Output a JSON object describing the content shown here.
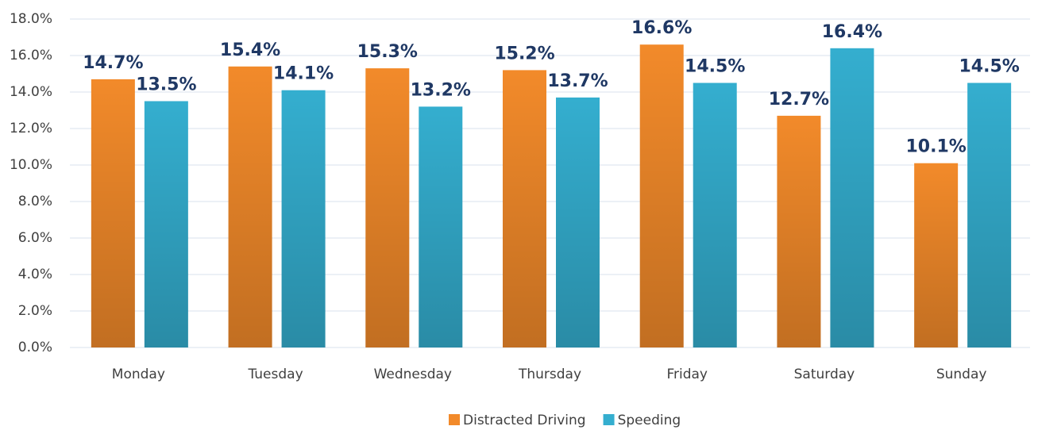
{
  "chart_data": {
    "type": "bar",
    "categories": [
      "Monday",
      "Tuesday",
      "Wednesday",
      "Thursday",
      "Friday",
      "Saturday",
      "Sunday"
    ],
    "series": [
      {
        "name": "Distracted Driving",
        "color": "#f28a2a",
        "values": [
          14.7,
          15.4,
          15.3,
          15.2,
          16.6,
          12.7,
          10.1
        ],
        "value_labels": [
          "14.7%",
          "15.4%",
          "15.3%",
          "15.2%",
          "16.6%",
          "12.7%",
          "10.1%"
        ]
      },
      {
        "name": "Speeding",
        "color": "#34aecf",
        "values": [
          13.5,
          14.1,
          13.2,
          13.7,
          14.5,
          16.4,
          14.5
        ],
        "value_labels": [
          "13.5%",
          "14.1%",
          "13.2%",
          "13.7%",
          "14.5%",
          "16.4%",
          "14.5%"
        ]
      }
    ],
    "ylim": [
      0,
      18
    ],
    "yticks": [
      {
        "value": 0,
        "label": "0.0%"
      },
      {
        "value": 2,
        "label": "2.0%"
      },
      {
        "value": 4,
        "label": "4.0%"
      },
      {
        "value": 6,
        "label": "6.0%"
      },
      {
        "value": 8,
        "label": "8.0%"
      },
      {
        "value": 10,
        "label": "10.0%"
      },
      {
        "value": 12,
        "label": "12.0%"
      },
      {
        "value": 14,
        "label": "14.0%"
      },
      {
        "value": 16,
        "label": "16.0%"
      },
      {
        "value": 18,
        "label": "18.0%"
      }
    ],
    "grid": true,
    "legend": "bottom"
  }
}
